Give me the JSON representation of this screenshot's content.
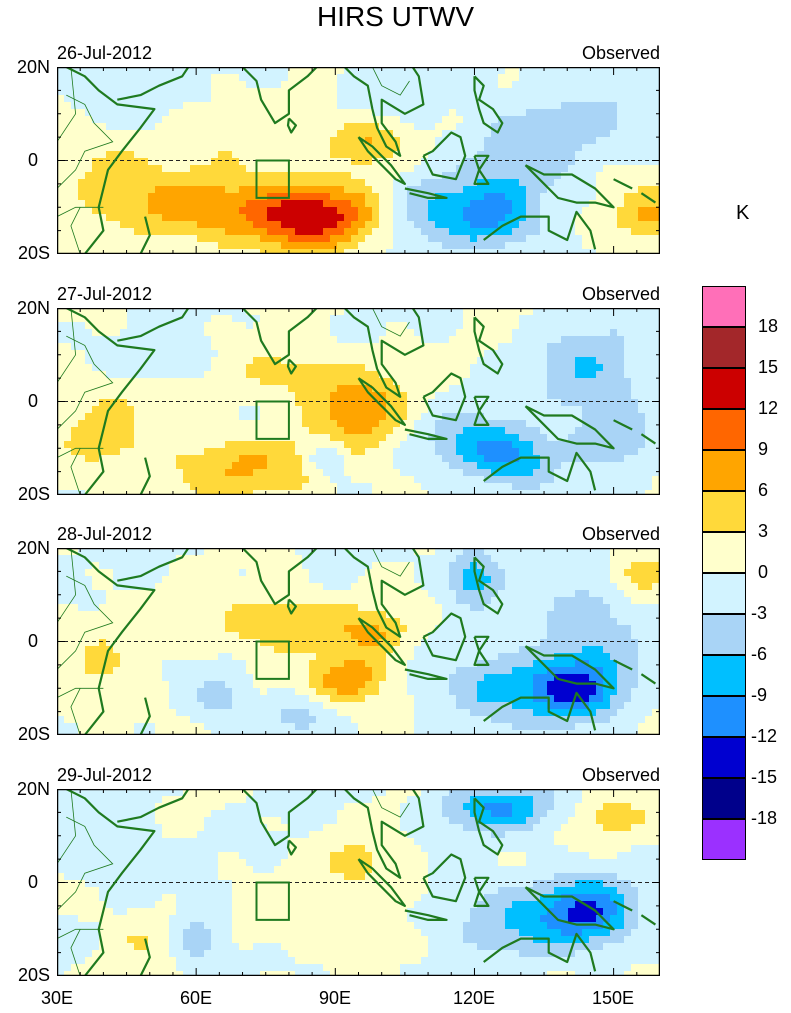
{
  "title": "HIRS UTWV",
  "unit": "K",
  "panels": [
    {
      "date": "26-Jul-2012",
      "label": "Observed"
    },
    {
      "date": "27-Jul-2012",
      "label": "Observed"
    },
    {
      "date": "28-Jul-2012",
      "label": "Observed"
    },
    {
      "date": "29-Jul-2012",
      "label": "Observed"
    }
  ],
  "y_ticks": [
    "20N",
    "0",
    "20S"
  ],
  "x_ticks": [
    "30E",
    "60E",
    "90E",
    "120E",
    "150E"
  ],
  "colorbar": {
    "labels": [
      "18",
      "15",
      "12",
      "9",
      "6",
      "3",
      "0",
      "-3",
      "-6",
      "-9",
      "-12",
      "-15",
      "-18"
    ],
    "colors": [
      "#ff6fb8",
      "#a3272a",
      "#cc0000",
      "#ff6600",
      "#ffa500",
      "#ffd93a",
      "#ffffcc",
      "#d2f3ff",
      "#a9d4f6",
      "#00bfff",
      "#1e90ff",
      "#0000d0",
      "#00008b",
      "#9b30ff"
    ]
  },
  "chart_data": {
    "type": "heatmap",
    "title": "HIRS UTWV",
    "colorbar_unit": "K",
    "colorbar_levels": [
      -18,
      -15,
      -12,
      -9,
      -6,
      -3,
      0,
      3,
      6,
      9,
      12,
      15,
      18
    ],
    "x_range": [
      30,
      160
    ],
    "y_range": [
      -20,
      20
    ],
    "xlabel": "",
    "ylabel": "",
    "panels": [
      "26-Jul-2012",
      "27-Jul-2012",
      "28-Jul-2012",
      "29-Jul-2012"
    ]
  }
}
